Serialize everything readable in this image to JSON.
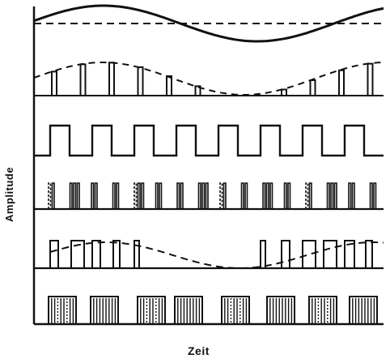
{
  "axes": {
    "ylabel": "Amplitude",
    "xlabel": "Zeit"
  },
  "colors": {
    "ink": "#111111",
    "background": "#ffffff"
  },
  "traces": [
    {
      "name": "analog-signal",
      "kind": "sine-with-reference-line"
    },
    {
      "name": "pam-signal",
      "kind": "sampled-pulses-with-envelope"
    },
    {
      "name": "pulse-train",
      "kind": "square-wave"
    },
    {
      "name": "pcm-pulses",
      "kind": "coded-pulse-groups"
    },
    {
      "name": "pdm-signal",
      "kind": "width-modulated-pulses-with-envelope"
    },
    {
      "name": "digital-code-signal",
      "kind": "dense-code-groups"
    }
  ]
}
